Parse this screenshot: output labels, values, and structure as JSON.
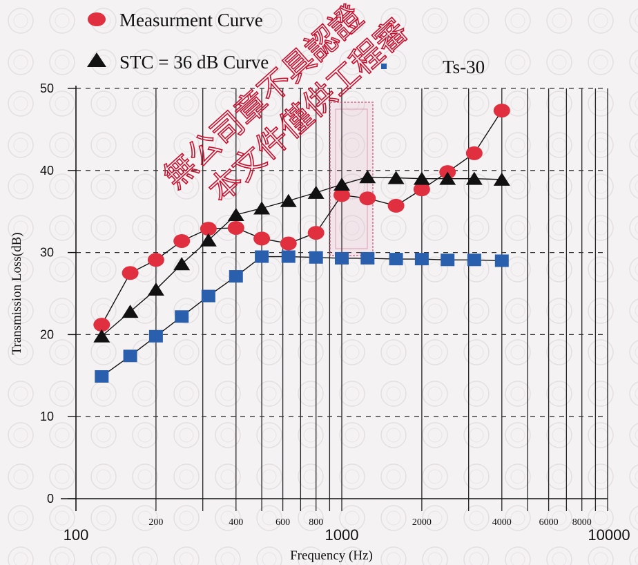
{
  "chart_data": {
    "type": "line",
    "xlabel": "Frequency (Hz)",
    "ylabel": "Transmission Loss(dB)",
    "x_scale": "log",
    "xlim": [
      100,
      10000
    ],
    "ylim": [
      0,
      50
    ],
    "grid": true,
    "legend_position": "top-left",
    "y_ticks": [
      "0",
      "10",
      "20",
      "30",
      "40",
      "50"
    ],
    "x_tick_labels_major": [
      {
        "x": 100,
        "label": "100"
      },
      {
        "x": 1000,
        "label": "1000"
      },
      {
        "x": 10000,
        "label": "10000"
      }
    ],
    "x_tick_labels_minor": [
      {
        "x": 200,
        "label": "200"
      },
      {
        "x": 400,
        "label": "400"
      },
      {
        "x": 600,
        "label": "600"
      },
      {
        "x": 800,
        "label": "800"
      },
      {
        "x": 2000,
        "label": "2000"
      },
      {
        "x": 4000,
        "label": "4000"
      },
      {
        "x": 6000,
        "label": "6000"
      },
      {
        "x": 8000,
        "label": "8000"
      }
    ],
    "x": [
      125,
      160,
      200,
      250,
      315,
      400,
      500,
      630,
      800,
      1000,
      1250,
      1600,
      2000,
      2500,
      3150,
      4000
    ],
    "series": [
      {
        "name": "Measurment Curve",
        "marker": "circle",
        "color": "#e03040",
        "values": [
          21.2,
          27.5,
          29.1,
          31.4,
          32.9,
          33.0,
          31.7,
          31.1,
          32.4,
          37.0,
          36.6,
          35.7,
          37.7,
          39.8,
          42.1,
          47.3
        ]
      },
      {
        "name": "STC = 36 dB Curve",
        "marker": "triangle",
        "color": "#111111",
        "values": [
          19.8,
          22.8,
          25.5,
          28.6,
          31.5,
          34.6,
          35.4,
          36.3,
          37.3,
          38.3,
          39.2,
          39.1,
          39.0,
          39.0,
          39.0,
          38.9
        ]
      },
      {
        "name": "Ts-30",
        "marker": "square",
        "color": "#2a5fad",
        "values": [
          14.9,
          17.4,
          19.8,
          22.2,
          24.7,
          27.1,
          29.5,
          29.5,
          29.4,
          29.3,
          29.3,
          29.2,
          29.2,
          29.1,
          29.1,
          29.0
        ]
      }
    ]
  },
  "watermark": {
    "line1": "無公司章不具認證",
    "line2": "本文件僅供工程審"
  }
}
